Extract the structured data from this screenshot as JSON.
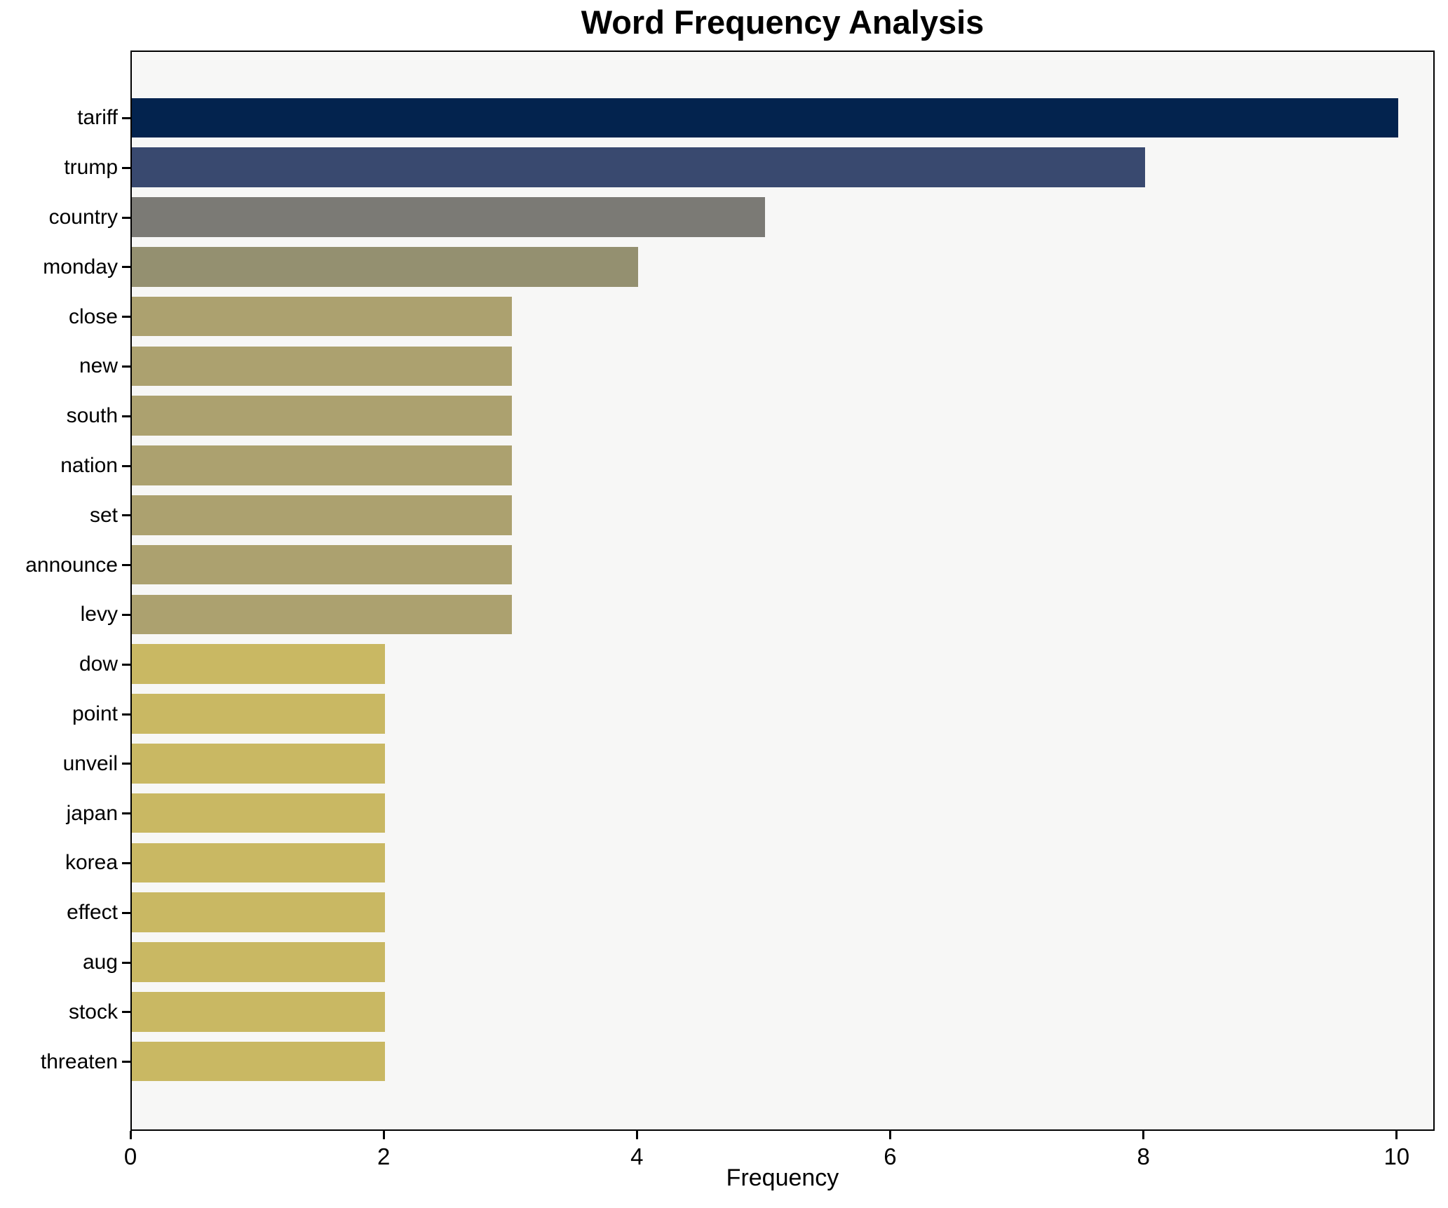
{
  "chart_data": {
    "type": "bar",
    "orientation": "horizontal",
    "title": "Word Frequency Analysis",
    "xlabel": "Frequency",
    "ylabel": "",
    "categories": [
      "tariff",
      "trump",
      "country",
      "monday",
      "close",
      "new",
      "south",
      "nation",
      "set",
      "announce",
      "levy",
      "dow",
      "point",
      "unveil",
      "japan",
      "korea",
      "effect",
      "aug",
      "stock",
      "threaten"
    ],
    "values": [
      10,
      8,
      5,
      4,
      3,
      3,
      3,
      3,
      3,
      3,
      3,
      2,
      2,
      2,
      2,
      2,
      2,
      2,
      2,
      2
    ],
    "bar_colors": [
      "#03234e",
      "#39496f",
      "#7b7a75",
      "#949070",
      "#aca16f",
      "#aca16f",
      "#aca16f",
      "#aca16f",
      "#aca16f",
      "#aca16f",
      "#aca16f",
      "#c9b863",
      "#c9b863",
      "#c9b863",
      "#c9b863",
      "#c9b863",
      "#c9b863",
      "#c9b863",
      "#c9b863",
      "#c9b863"
    ],
    "xticks": [
      0,
      2,
      4,
      6,
      8,
      10
    ],
    "xlim": [
      0,
      10.3
    ],
    "grid": false,
    "legend": false,
    "plot_background": "#f7f7f6",
    "figure_background": "#ffffff",
    "axis_color": "#000000"
  }
}
